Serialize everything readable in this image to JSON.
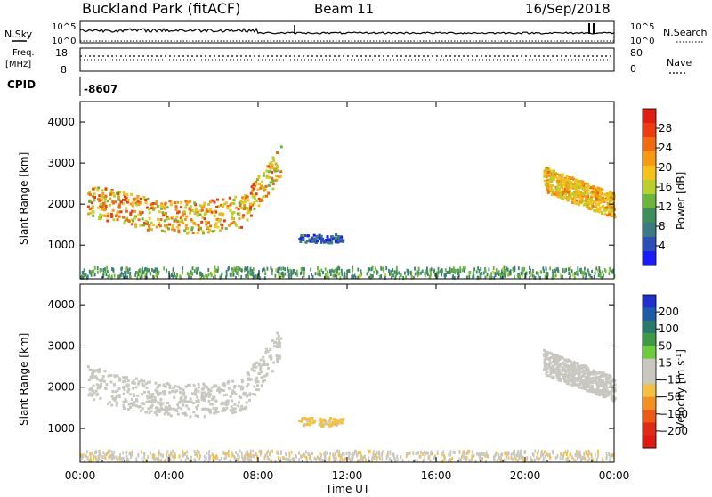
{
  "header": {
    "station": "Buckland Park (fitACF)",
    "beam": "Beam 11",
    "date": "16/Sep/2018"
  },
  "strip_labels": {
    "nsky": "N.Sky",
    "nsky_ticks": [
      "10^5",
      "10^0"
    ],
    "nsearch": "N.Search",
    "nsearch_ticks": [
      "10^5",
      "10^0"
    ],
    "freq_line1": "Freq.",
    "freq_line2": "[MHz]",
    "freq_ticks": [
      "18",
      "8"
    ],
    "nave": "Nave",
    "nave_ticks": [
      "80",
      "0"
    ],
    "cpid": "CPID",
    "cpid_value": "-8607"
  },
  "colors": {
    "power_scale": [
      "#1a1aff",
      "#2b4fb5",
      "#3a7a82",
      "#3c8f5a",
      "#6bb53a",
      "#b9d02a",
      "#f5c21a",
      "#f79a12",
      "#f26a0e",
      "#ee3b10",
      "#e01e12"
    ],
    "velocity_scale": [
      "#2030d0",
      "#1d5aa8",
      "#2a7a6a",
      "#3f9a45",
      "#6ccc3a",
      "#c8c8c0",
      "#c8c8c0",
      "#f5c040",
      "#f59020",
      "#ee5a12",
      "#e02a18",
      "#e01a10"
    ]
  },
  "chart_data": [
    {
      "type": "heatmap",
      "name": "power",
      "ylabel": "Slant Range [km]",
      "xlabel": "",
      "x_ticks": [
        "00:00",
        "04:00",
        "08:00",
        "12:00",
        "16:00",
        "20:00",
        "00:00"
      ],
      "y_ticks": [
        1000,
        2000,
        3000,
        4000
      ],
      "xlim_hours": [
        0,
        24
      ],
      "ylim_km": [
        180,
        4500
      ],
      "colorbar": {
        "label": "Power [dB]",
        "ticks": [
          4,
          8,
          12,
          16,
          20,
          24,
          28
        ],
        "range": [
          0,
          32
        ]
      },
      "echo_regions": [
        {
          "region": "near-range band",
          "t_start_h": 0.0,
          "t_end_h": 24.0,
          "range_km": [
            200,
            450
          ],
          "typical_power_db": 10
        },
        {
          "region": "evening arc",
          "t_start_h": 0.3,
          "t_end_h": 9.0,
          "range_km": [
            1500,
            3300
          ],
          "typical_power_db": 18,
          "peak_power_db": 30
        },
        {
          "region": "isolated patch",
          "t_start_h": 9.8,
          "t_end_h": 11.8,
          "range_km": [
            1050,
            1250
          ],
          "typical_power_db": 4
        },
        {
          "region": "morning band",
          "t_start_h": 20.8,
          "t_end_h": 24.0,
          "range_km": [
            1700,
            3000
          ],
          "typical_power_db": 20
        }
      ]
    },
    {
      "type": "heatmap",
      "name": "velocity",
      "ylabel": "Slant Range [km]",
      "xlabel": "Time UT",
      "x_ticks": [
        "00:00",
        "04:00",
        "08:00",
        "12:00",
        "16:00",
        "20:00",
        "00:00"
      ],
      "y_ticks": [
        1000,
        2000,
        3000,
        4000
      ],
      "xlim_hours": [
        0,
        24
      ],
      "ylim_km": [
        180,
        4500
      ],
      "colorbar": {
        "label": "Velocity [m s^-1]",
        "ticks": [
          "200",
          "100",
          "50",
          "15",
          "-15",
          "-50",
          "-100",
          "-200"
        ],
        "range": [
          -250,
          250
        ]
      },
      "echo_regions": [
        {
          "region": "near-range band",
          "t_start_h": 0.0,
          "t_end_h": 24.0,
          "range_km": [
            200,
            450
          ],
          "typical_velocity_ms": -30
        },
        {
          "region": "evening arc",
          "t_start_h": 0.3,
          "t_end_h": 9.0,
          "range_km": [
            1500,
            3300
          ],
          "typical_velocity_ms": 0
        },
        {
          "region": "isolated patch",
          "t_start_h": 9.8,
          "t_end_h": 11.8,
          "range_km": [
            1050,
            1250
          ],
          "typical_velocity_ms": -60
        },
        {
          "region": "morning band",
          "t_start_h": 20.8,
          "t_end_h": 24.0,
          "range_km": [
            1700,
            3000
          ],
          "typical_velocity_ms": 0
        }
      ]
    }
  ]
}
